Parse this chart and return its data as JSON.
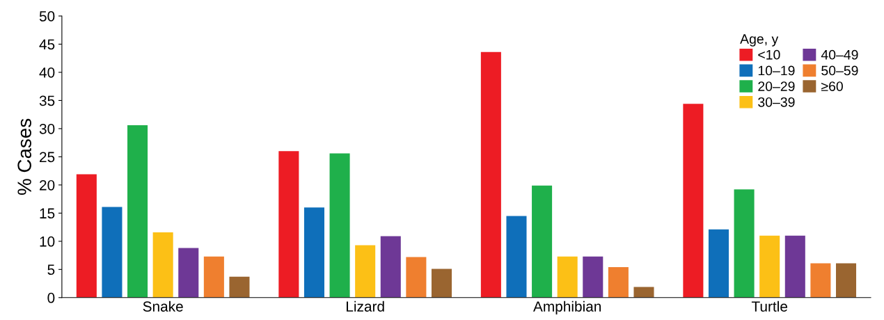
{
  "chart_data": {
    "type": "bar",
    "ylabel": "% Cases",
    "legend_title": "Age, y",
    "legend": "top right",
    "grid": false,
    "categories": [
      "Snake",
      "Lizard",
      "Amphibian",
      "Turtle"
    ],
    "ylim": [
      0,
      50
    ],
    "yticks": [
      0,
      5,
      10,
      15,
      20,
      25,
      30,
      35,
      40,
      45,
      50
    ],
    "series": [
      {
        "name": "<10",
        "color": "#ed1c24",
        "values": [
          21.9,
          26.0,
          43.6,
          34.4
        ]
      },
      {
        "name": "10–19",
        "color": "#0f6fba",
        "values": [
          16.1,
          16.0,
          14.5,
          12.1
        ]
      },
      {
        "name": "20–29",
        "color": "#1fb04b",
        "values": [
          30.6,
          25.6,
          19.9,
          19.2
        ]
      },
      {
        "name": "30–39",
        "color": "#fcc016",
        "values": [
          11.6,
          9.3,
          7.3,
          11.0
        ]
      },
      {
        "name": "40–49",
        "color": "#6e3896",
        "values": [
          8.8,
          10.9,
          7.3,
          11.0
        ]
      },
      {
        "name": "50–59",
        "color": "#ef7f2f",
        "values": [
          7.3,
          7.2,
          5.4,
          6.1
        ]
      },
      {
        "name": "≥60",
        "color": "#9a6530",
        "values": [
          3.7,
          5.1,
          1.9,
          6.1
        ]
      }
    ]
  }
}
